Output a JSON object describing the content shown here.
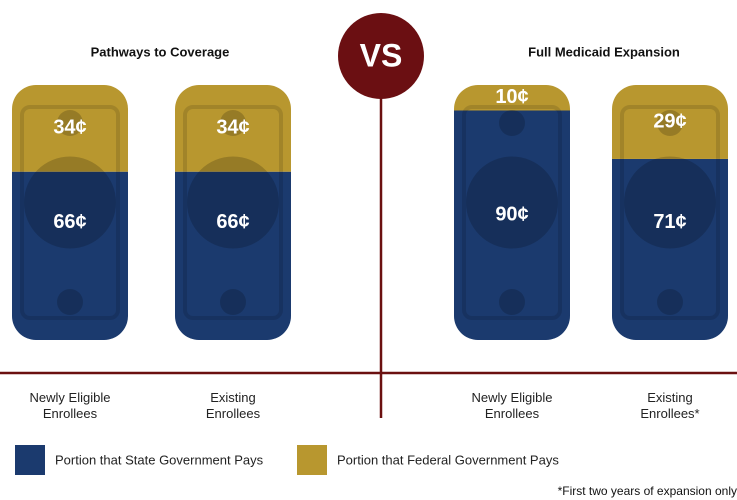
{
  "chart_data": {
    "type": "bar",
    "stacked": true,
    "group_titles": [
      "Pathways to Coverage",
      "Full Medicaid Expansion"
    ],
    "categories": [
      "Newly Eligible Enrollees",
      "Existing Enrollees",
      "Newly Eligible Enrollees",
      "Existing Enrollees*"
    ],
    "series": [
      {
        "name": "Portion that State Government Pays",
        "color": "#1b3a6e",
        "values": [
          66,
          66,
          90,
          71
        ],
        "value_labels": [
          "66¢",
          "66¢",
          "90¢",
          "71¢"
        ]
      },
      {
        "name": "Portion that Federal Government Pays",
        "color": "#b8972f",
        "values": [
          34,
          34,
          10,
          29
        ],
        "value_labels": [
          "34¢",
          "34¢",
          "10¢",
          "29¢"
        ]
      }
    ]
  },
  "vs_label": "VS",
  "footnote": "*First two years of expansion only"
}
